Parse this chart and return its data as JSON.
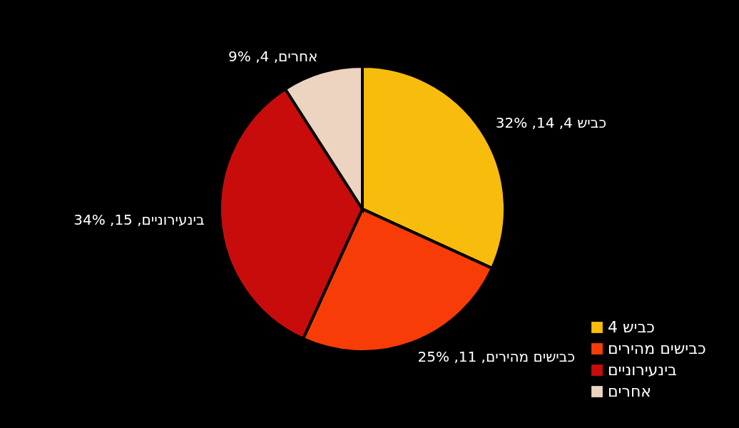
{
  "chart_data": {
    "type": "pie",
    "categories": [
      "כביש 4",
      "כבישים מהירים",
      "בינעירוניים",
      "אחרים"
    ],
    "values": [
      14,
      11,
      15,
      4
    ],
    "colors": [
      "#f8bd0c",
      "#f83c08",
      "#c80c0c",
      "#ecd4c0"
    ],
    "value_labels": [
      "כביש 4, 14, 32%",
      "כבישים מהירים, 11, 25%",
      "בינעירוניים, 15, 34%",
      "אחרים, 4, 9%"
    ],
    "legend": "bottom right"
  }
}
